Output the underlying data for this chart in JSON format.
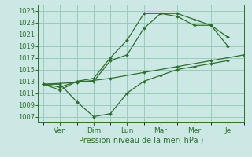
{
  "background_color": "#cce8e4",
  "grid_color": "#99ccbb",
  "line_color": "#2d6e2d",
  "x_tick_labels": [
    "Ven",
    "Dim",
    "Lun",
    "Mar",
    "Mer",
    "Je"
  ],
  "x_tick_positions": [
    1.5,
    4.5,
    7.5,
    10.5,
    13.5,
    16.5
  ],
  "x_minor_positions": [
    0,
    3,
    6,
    9,
    12,
    15,
    18
  ],
  "xlabel": "Pression niveau de la mer( hPa )",
  "ylim": [
    1006,
    1026
  ],
  "yticks": [
    1007,
    1009,
    1011,
    1013,
    1015,
    1017,
    1019,
    1021,
    1023,
    1025
  ],
  "xlim": [
    -0.5,
    18
  ],
  "series": [
    {
      "x": [
        0,
        3,
        6,
        9,
        12,
        15,
        18
      ],
      "y": [
        1012.5,
        1012.8,
        1013.5,
        1014.5,
        1015.5,
        1016.5,
        1017.5
      ]
    },
    {
      "x": [
        0,
        1.5,
        3,
        4.5,
        6,
        7.5,
        9,
        10.5,
        12,
        13.5,
        15,
        16.5
      ],
      "y": [
        1012.5,
        1012.5,
        1009.5,
        1007.0,
        1007.5,
        1011.0,
        1013.0,
        1014.0,
        1015.0,
        1015.5,
        1016.0,
        1016.5
      ]
    },
    {
      "x": [
        0,
        1.5,
        3,
        4.5,
        6,
        7.5,
        9,
        10.5,
        12,
        13.5,
        15,
        16.5
      ],
      "y": [
        1012.5,
        1011.5,
        1013.0,
        1013.0,
        1016.5,
        1017.5,
        1022.0,
        1024.5,
        1024.0,
        1022.5,
        1022.5,
        1019.0
      ]
    },
    {
      "x": [
        0,
        1.5,
        3,
        4.5,
        6,
        7.5,
        9,
        10.5,
        12,
        13.5,
        15,
        16.5
      ],
      "y": [
        1012.5,
        1012.0,
        1013.0,
        1013.5,
        1017.0,
        1020.0,
        1024.5,
        1024.5,
        1024.5,
        1023.5,
        1022.5,
        1020.5
      ]
    }
  ]
}
